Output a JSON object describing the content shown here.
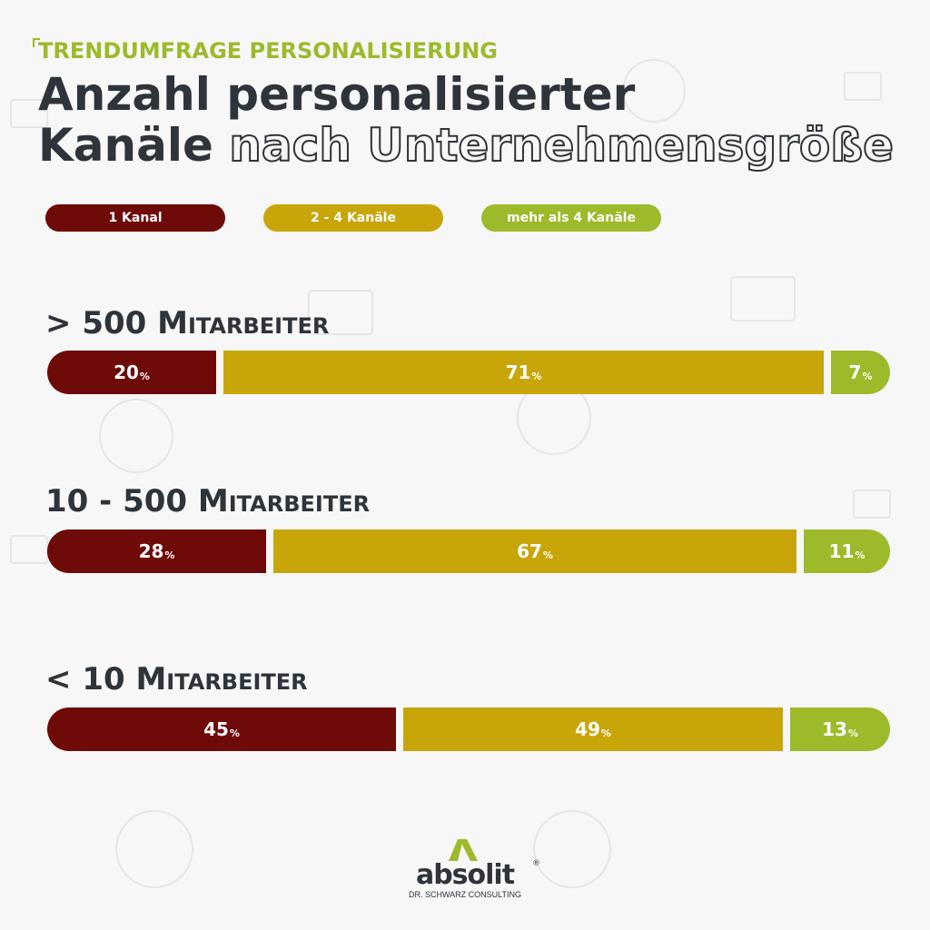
{
  "header": {
    "kicker": "TRENDUMFRAGE PERSONALISIERUNG",
    "title_line1": "Anzahl personalisierter",
    "title_line2_bold": "Kanäle",
    "title_line2_outline": "nach Unternehmensgröße"
  },
  "colors": {
    "dark_red": "#6e0a08",
    "gold": "#c8a60a",
    "green": "#9dba2a",
    "text_dark": "#2e343a",
    "background": "#f7f7f7"
  },
  "chart_data": {
    "type": "bar",
    "orientation": "horizontal",
    "stacked": true,
    "unit": "%",
    "categories": [
      "> 500 Mitarbeiter",
      "10 - 500 Mitarbeiter",
      "< 10 Mitarbeiter"
    ],
    "series": [
      {
        "name": "1 Kanal",
        "values": [
          20,
          28,
          45
        ],
        "color": "#6e0a08"
      },
      {
        "name": "2 - 4 Kanäle",
        "values": [
          71,
          67,
          49
        ],
        "color": "#c8a60a"
      },
      {
        "name": "mehr als 4 Kanäle",
        "values": [
          7,
          11,
          13
        ],
        "color": "#9dba2a"
      }
    ],
    "legend_position": "top",
    "grid": false
  },
  "logo": {
    "name": "absolit",
    "registered": "®",
    "subtitle": "DR. SCHWARZ CONSULTING"
  }
}
